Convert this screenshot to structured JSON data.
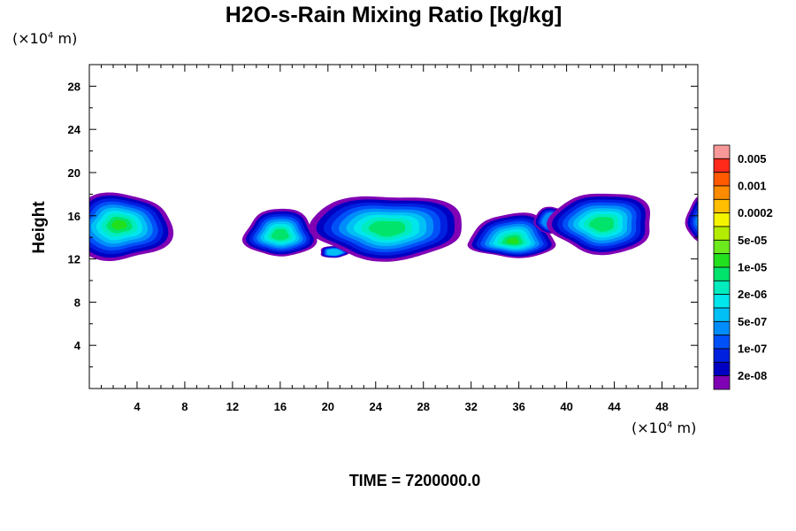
{
  "chart_data": {
    "type": "contour",
    "title": "H2O-s-Rain Mixing Ratio [kg/kg]",
    "xlabel": "",
    "ylabel": "Height",
    "x_unit": {
      "prefix": "(×10",
      "exp": "4",
      "suffix": " m)"
    },
    "y_unit": {
      "prefix": "(×10",
      "exp": "4",
      "suffix": " m)"
    },
    "xlim": [
      0,
      51
    ],
    "ylim": [
      0,
      30
    ],
    "x_ticks": [
      4,
      8,
      12,
      16,
      20,
      24,
      28,
      32,
      36,
      40,
      44,
      48
    ],
    "y_ticks": [
      4,
      8,
      12,
      16,
      20,
      24,
      28
    ],
    "x_minor_step": 1,
    "y_minor_step": 2,
    "time_label": "TIME = 7200000.0",
    "legend": {
      "placement": "right",
      "bands": [
        {
          "color": "#f89898",
          "label": "0.005"
        },
        {
          "color": "#ff2a1a",
          "label": ""
        },
        {
          "color": "#ff5a00",
          "label": "0.001"
        },
        {
          "color": "#ff8c00",
          "label": ""
        },
        {
          "color": "#ffbe00",
          "label": "0.0002"
        },
        {
          "color": "#f4f400",
          "label": ""
        },
        {
          "color": "#b4ec00",
          "label": "5e-05"
        },
        {
          "color": "#6cea1c",
          "label": ""
        },
        {
          "color": "#22e01e",
          "label": "1e-05"
        },
        {
          "color": "#00e46c",
          "label": ""
        },
        {
          "color": "#00ecbe",
          "label": "2e-06"
        },
        {
          "color": "#00e6ec",
          "label": ""
        },
        {
          "color": "#00c0f6",
          "label": "5e-07"
        },
        {
          "color": "#008cfa",
          "label": ""
        },
        {
          "color": "#0050f8",
          "label": "1e-07"
        },
        {
          "color": "#0020e0",
          "label": ""
        },
        {
          "color": "#0000c2",
          "label": "2e-08"
        },
        {
          "color": "#8000b4",
          "label": ""
        }
      ]
    },
    "cells": [
      {
        "cx": 2.5,
        "cy": 15.2,
        "hw": 4.4,
        "top": 2.8,
        "bot": 3.4,
        "peak": 9
      },
      {
        "cx": 16.0,
        "cy": 14.2,
        "hw": 3.0,
        "top": 2.4,
        "bot": 2.0,
        "peak": 8
      },
      {
        "cx": 20.5,
        "cy": 12.6,
        "hw": 1.2,
        "top": 0.6,
        "bot": 0.5,
        "peak": 5
      },
      {
        "cx": 25.0,
        "cy": 14.8,
        "hw": 6.4,
        "top": 3.2,
        "bot": 2.8,
        "peak": 8
      },
      {
        "cx": 35.5,
        "cy": 13.6,
        "hw": 3.6,
        "top": 2.6,
        "bot": 1.5,
        "peak": 9
      },
      {
        "cx": 39.0,
        "cy": 15.4,
        "hw": 1.8,
        "top": 1.4,
        "bot": 1.0,
        "peak": 4
      },
      {
        "cx": 43.0,
        "cy": 15.2,
        "hw": 4.3,
        "top": 3.0,
        "bot": 2.7,
        "peak": 8
      },
      {
        "cx": 52.2,
        "cy": 15.5,
        "hw": 2.3,
        "top": 2.4,
        "bot": 2.0,
        "peak": 7
      }
    ]
  }
}
